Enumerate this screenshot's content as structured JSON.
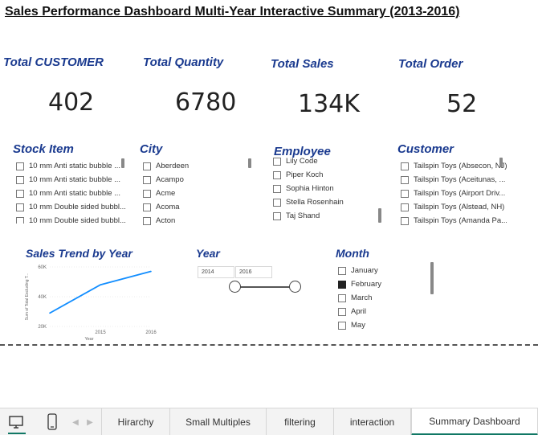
{
  "title": "Sales Performance Dashboard Multi-Year Interactive Summary (2013-2016)",
  "kpis": [
    {
      "label": "Total CUSTOMER",
      "value": "402"
    },
    {
      "label": "Total Quantity",
      "value": "6780"
    },
    {
      "label": "Total Sales",
      "value": "134K"
    },
    {
      "label": "Total Order",
      "value": "52"
    }
  ],
  "slicers": {
    "stock_item": {
      "title": "Stock Item",
      "items": [
        "10 mm Anti static bubble ...",
        "10 mm Anti static bubble ...",
        "10 mm Anti static bubble ...",
        "10 mm Double sided bubbl...",
        "10 mm Double sided bubbl..."
      ]
    },
    "city": {
      "title": "City",
      "items": [
        "Aberdeen",
        "Acampo",
        "Acme",
        "Acoma",
        "Acton"
      ]
    },
    "employee": {
      "title": "Employee",
      "items": [
        "Lily Code",
        "Piper Koch",
        "Sophia Hinton",
        "Stella Rosenhain",
        "Taj Shand"
      ]
    },
    "customer": {
      "title": "Customer",
      "items": [
        "Tailspin Toys (Absecon, NJ)",
        "Tailspin Toys (Aceitunas, ...",
        "Tailspin Toys (Airport Driv...",
        "Tailspin Toys (Alstead, NH)",
        "Tailspin Toys (Amanda Pa..."
      ]
    }
  },
  "trend": {
    "title": "Sales Trend by Year"
  },
  "year_slicer": {
    "title": "Year",
    "start": "2014",
    "end": "2016"
  },
  "month_slicer": {
    "title": "Month",
    "items": [
      "January",
      "February",
      "March",
      "April",
      "May"
    ],
    "selected": "February"
  },
  "chart_data": {
    "type": "line",
    "title": "Sales Trend by Year",
    "xlabel": "Year",
    "ylabel": "Sum of Total Excluding T...",
    "x": [
      2014,
      2015,
      2016
    ],
    "y_ticks": [
      "20K",
      "40K",
      "60K"
    ],
    "x_ticks": [
      "2015",
      "2016"
    ],
    "ylim": [
      20000,
      60000
    ],
    "series": [
      {
        "values": [
          29000,
          48000,
          57000
        ]
      }
    ],
    "color": "#118dff"
  },
  "tabs": [
    "Hirarchy",
    "Small Multiples",
    "filtering",
    "interaction",
    "Summary Dashboard"
  ],
  "active_tab": "Summary Dashboard"
}
